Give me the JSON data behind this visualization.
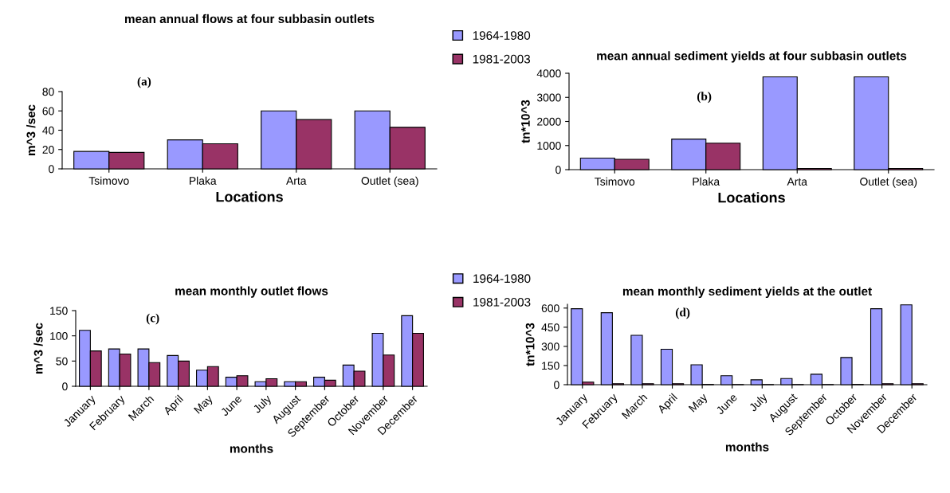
{
  "chart_data": [
    {
      "type": "bar",
      "title": "mean annual flows at four subbasin outlets",
      "xlabel": "Locations",
      "ylabel": "m^3 /sec",
      "categories": [
        "Tsimovo",
        "Plaka",
        "Arta",
        "Outlet (sea)"
      ],
      "series": [
        {
          "name": "1964-1980",
          "color": "#9999ff",
          "values": [
            18,
            30,
            60,
            60
          ]
        },
        {
          "name": "1981-2003",
          "color": "#993366",
          "values": [
            17,
            26,
            51,
            43
          ]
        }
      ],
      "ylim": [
        0,
        80
      ],
      "yticks": [
        0,
        20,
        40,
        60,
        80
      ],
      "annotations": [
        "(a)"
      ],
      "legend": "right",
      "grid": false
    },
    {
      "type": "bar",
      "title": "mean annual sediment yields at four subbasin outlets",
      "xlabel": "Locations",
      "ylabel": "tn*10^3",
      "categories": [
        "Tsimovo",
        "Plaka",
        "Arta",
        "Outlet (sea)"
      ],
      "series": [
        {
          "color": "#9999ff",
          "values": [
            480,
            1270,
            3850,
            3850
          ]
        },
        {
          "color": "#993366",
          "values": [
            430,
            1100,
            50,
            50
          ]
        }
      ],
      "ylim": [
        0,
        4000
      ],
      "yticks": [
        0,
        1000,
        2000,
        3000,
        4000
      ],
      "annotations": [
        "(b)"
      ],
      "grid": false
    },
    {
      "type": "bar",
      "title": "mean monthly outlet flows",
      "xlabel": "months",
      "ylabel": "m^3 /sec",
      "categories": [
        "January",
        "February",
        "March",
        "April",
        "May",
        "June",
        "July",
        "August",
        "September",
        "October",
        "November",
        "December"
      ],
      "series": [
        {
          "name": "1964-1980",
          "color": "#9999ff",
          "values": [
            111,
            74,
            74,
            61,
            32,
            18,
            9,
            9,
            18,
            42,
            105,
            140
          ]
        },
        {
          "name": "1981-2003",
          "color": "#993366",
          "values": [
            70,
            64,
            47,
            50,
            39,
            21,
            15,
            9,
            12,
            30,
            62,
            105
          ]
        }
      ],
      "ylim": [
        0,
        150
      ],
      "yticks": [
        0,
        50,
        100,
        150
      ],
      "annotations": [
        "(c)"
      ],
      "legend": "right",
      "grid": false
    },
    {
      "type": "bar",
      "title": "mean monthly sediment yields at the outlet",
      "xlabel": "months",
      "ylabel": "tn*10^3",
      "categories": [
        "January",
        "February",
        "March",
        "April",
        "May",
        "June",
        "July",
        "August",
        "September",
        "October",
        "November",
        "December"
      ],
      "series": [
        {
          "color": "#9999ff",
          "values": [
            595,
            564,
            387,
            278,
            156,
            70,
            38,
            48,
            82,
            213,
            595,
            625
          ]
        },
        {
          "color": "#993366",
          "values": [
            20,
            8,
            8,
            8,
            2,
            1,
            1,
            1,
            1,
            2,
            8,
            8
          ]
        }
      ],
      "ylim": [
        0,
        630
      ],
      "yticks": [
        0,
        150,
        300,
        450,
        600
      ],
      "annotations": [
        "(d)"
      ],
      "grid": false
    }
  ]
}
